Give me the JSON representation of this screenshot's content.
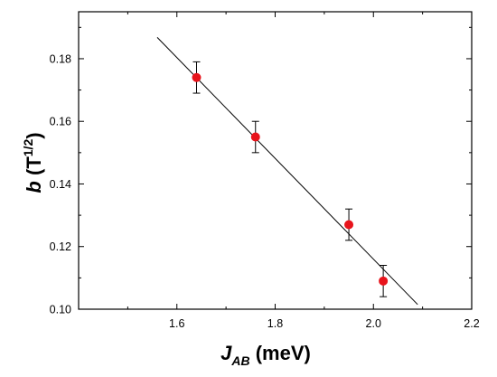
{
  "chart_data": {
    "type": "scatter",
    "title": "",
    "xlabel": {
      "main": "J",
      "sub": "AB",
      "rest": " (meV)"
    },
    "ylabel": {
      "main": "b",
      "rest": " (T",
      "sup": "1/2",
      "close": ")"
    },
    "xlim": [
      1.4,
      2.2
    ],
    "ylim": [
      0.1,
      0.195
    ],
    "xticks": [
      1.6,
      1.8,
      2.0,
      2.2
    ],
    "xtick_labels": [
      "1.6",
      "1.8",
      "2.0",
      "2.2"
    ],
    "yticks": [
      0.1,
      0.12,
      0.14,
      0.16,
      0.18
    ],
    "ytick_labels": [
      "0.10",
      "0.12",
      "0.14",
      "0.16",
      "0.18"
    ],
    "points": [
      {
        "x": 1.64,
        "y": 0.174,
        "err": 0.005
      },
      {
        "x": 1.76,
        "y": 0.155,
        "err": 0.005
      },
      {
        "x": 1.95,
        "y": 0.127,
        "err": 0.005
      },
      {
        "x": 2.02,
        "y": 0.109,
        "err": 0.005
      }
    ],
    "fit_line": {
      "x": [
        1.56,
        2.09
      ],
      "y": [
        0.1868,
        0.1015
      ]
    },
    "marker_color": "#e8141c",
    "line_color": "#000000",
    "grid": false,
    "legend": "none"
  }
}
